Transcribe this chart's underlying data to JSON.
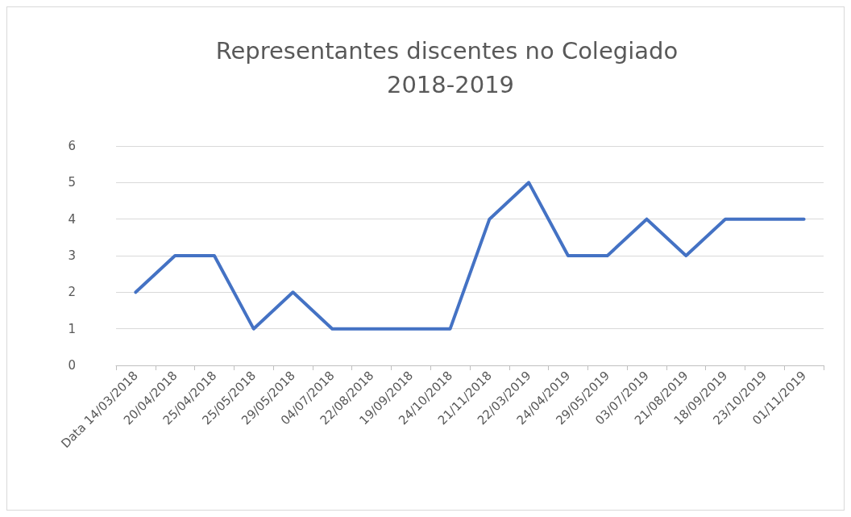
{
  "chart_data": {
    "type": "line",
    "title": "Representantes discentes no Colegiado 2018-2019",
    "categories": [
      "Data 14/03/2018",
      "20/04/2018",
      "25/04/2018",
      "25/05/2018",
      "29/05/2018",
      "04/07/2018",
      "22/08/2018",
      "19/09/2018",
      "24/10/2018",
      "21/11/2018",
      "22/03/2019",
      "24/04/2019",
      "29/05/2019",
      "03/07/2019",
      "21/08/2019",
      "18/09/2019",
      "23/10/2019",
      "01/11/2019"
    ],
    "series": [
      {
        "color": "#4472c4",
        "values": [
          2,
          3,
          3,
          1,
          2,
          1,
          1,
          1,
          1,
          4,
          5,
          3,
          3,
          4,
          3,
          4,
          4,
          4
        ]
      }
    ],
    "ylim": [
      0,
      6
    ],
    "yticks": [
      0,
      1,
      2,
      3,
      4,
      5,
      6
    ],
    "grid": "y",
    "marker": "none",
    "line_style": "solid"
  }
}
